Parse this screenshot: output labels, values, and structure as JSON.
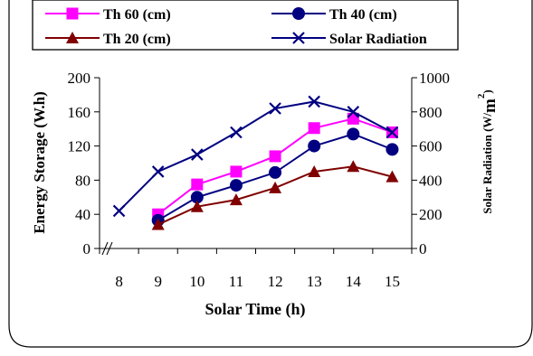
{
  "chart_data": {
    "type": "line",
    "x": [
      8,
      9,
      10,
      11,
      12,
      13,
      14,
      15
    ],
    "xlabel": "Solar Time (h)",
    "ylabel": "Energy Storage (W.h)",
    "y2label_main": "Solar Radiation (W/",
    "y2label_unit": "m",
    "y2label_sup": "2",
    "y2label_close": ")",
    "ylim": [
      0,
      200
    ],
    "y2lim": [
      0,
      1000
    ],
    "xlim": [
      7.5,
      15.5
    ],
    "xticks": [
      "8",
      "9",
      "10",
      "11",
      "12",
      "13",
      "14",
      "15"
    ],
    "yticks": [
      "0",
      "40",
      "80",
      "120",
      "160",
      "200"
    ],
    "y2ticks": [
      "0",
      "200",
      "400",
      "600",
      "800",
      "1000"
    ],
    "axis_break": "x",
    "grid": false,
    "legend_placement": "top",
    "series": [
      {
        "name": "Th 60 (cm)",
        "axis": "left",
        "color": "#FF00FF",
        "marker": "square",
        "x": [
          9,
          10,
          11,
          12,
          13,
          14,
          15
        ],
        "values": [
          40,
          75,
          90,
          108,
          141,
          152,
          136
        ]
      },
      {
        "name": "Th 40 (cm)",
        "axis": "left",
        "color": "#000080",
        "marker": "circle",
        "x": [
          9,
          10,
          11,
          12,
          13,
          14,
          15
        ],
        "values": [
          33,
          60,
          74,
          89,
          120,
          134,
          116
        ]
      },
      {
        "name": "Th 20 (cm)",
        "axis": "left",
        "color": "#800000",
        "marker": "triangle",
        "x": [
          9,
          10,
          11,
          12,
          13,
          14,
          15
        ],
        "values": [
          28,
          49,
          57,
          71,
          90,
          96,
          84
        ]
      },
      {
        "name": "Solar Radiation",
        "axis": "right",
        "color": "#000080",
        "marker": "x",
        "x": [
          8,
          9,
          10,
          11,
          12,
          13,
          14,
          15
        ],
        "values": [
          220,
          450,
          550,
          680,
          820,
          860,
          800,
          680
        ]
      }
    ]
  }
}
